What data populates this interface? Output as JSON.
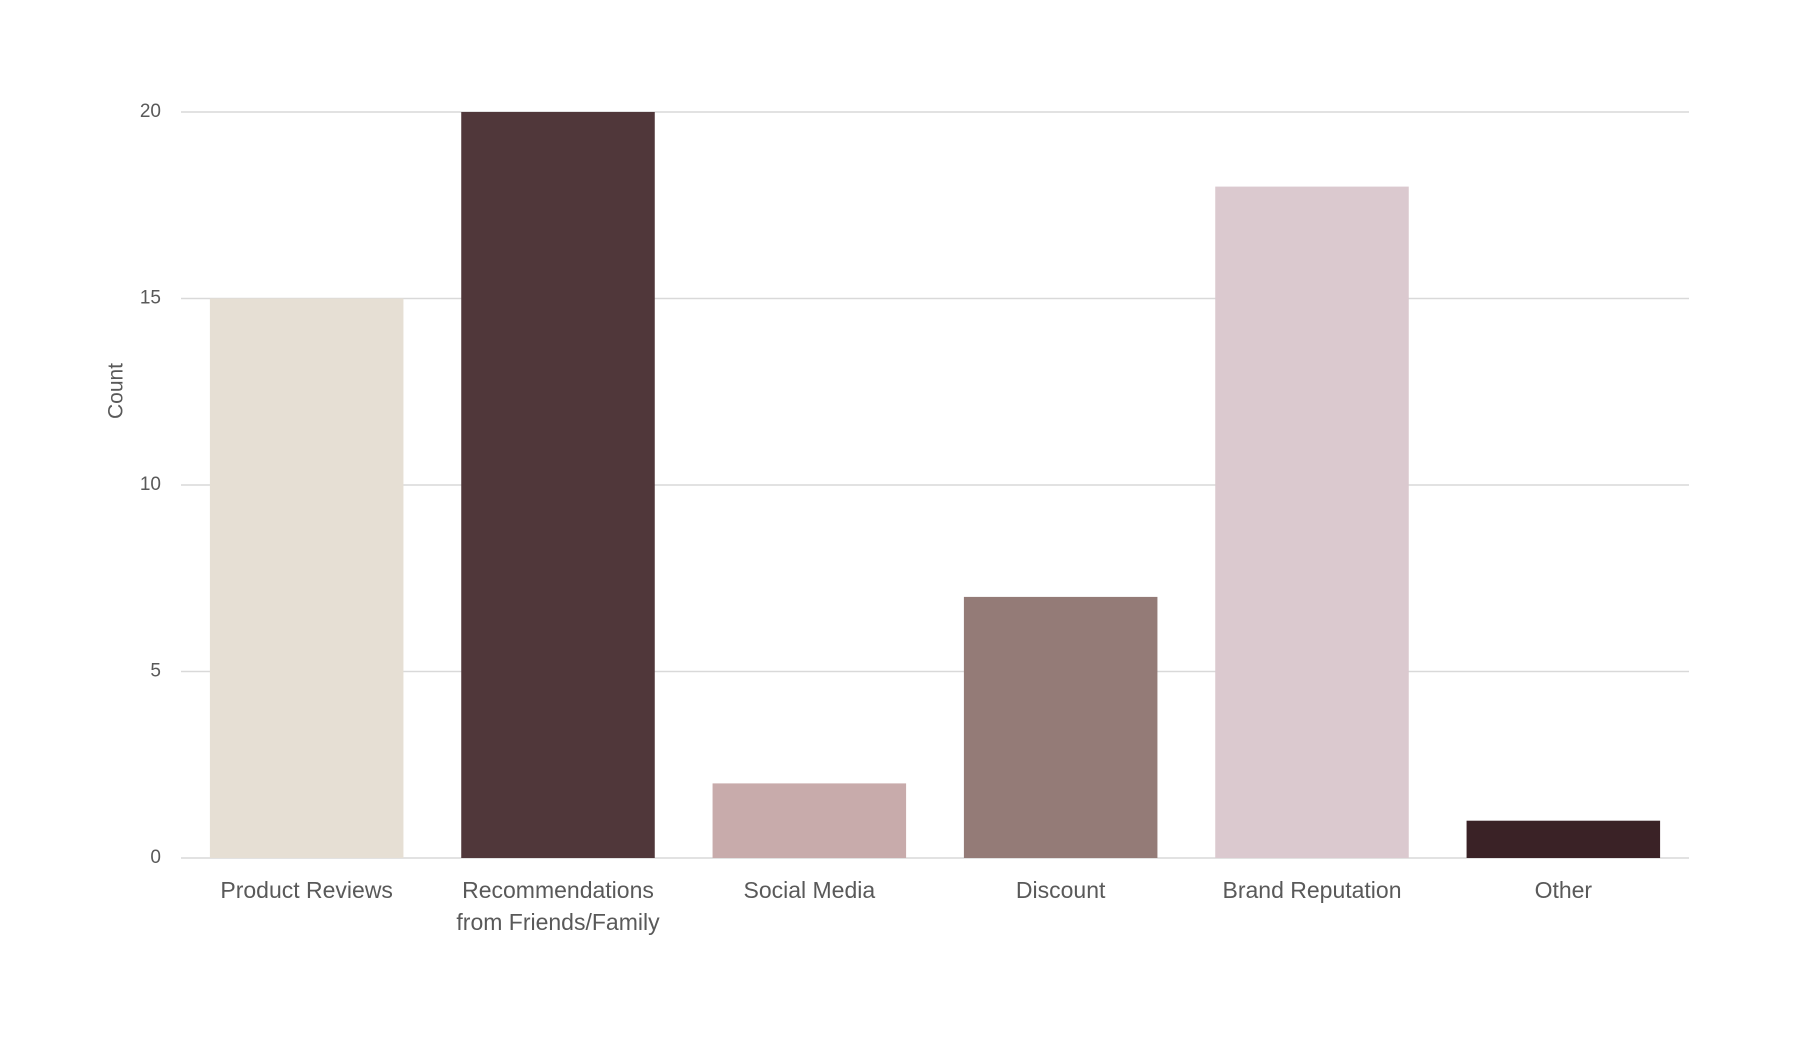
{
  "chart_data": {
    "type": "bar",
    "y_label": "Count",
    "categories": [
      "Product Reviews",
      "Recommendations from Friends/Family",
      "Social Media",
      "Discount",
      "Brand Reputation",
      "Other"
    ],
    "values": [
      15,
      20,
      2,
      7,
      18,
      1
    ],
    "colors": [
      "#e6dfd4",
      "#50373a",
      "#c8abab",
      "#947b77",
      "#dbc9cf",
      "#3a2226"
    ],
    "ylim": [
      0,
      20
    ],
    "yticks": [
      0,
      5,
      10,
      15,
      20
    ],
    "grid": true
  }
}
